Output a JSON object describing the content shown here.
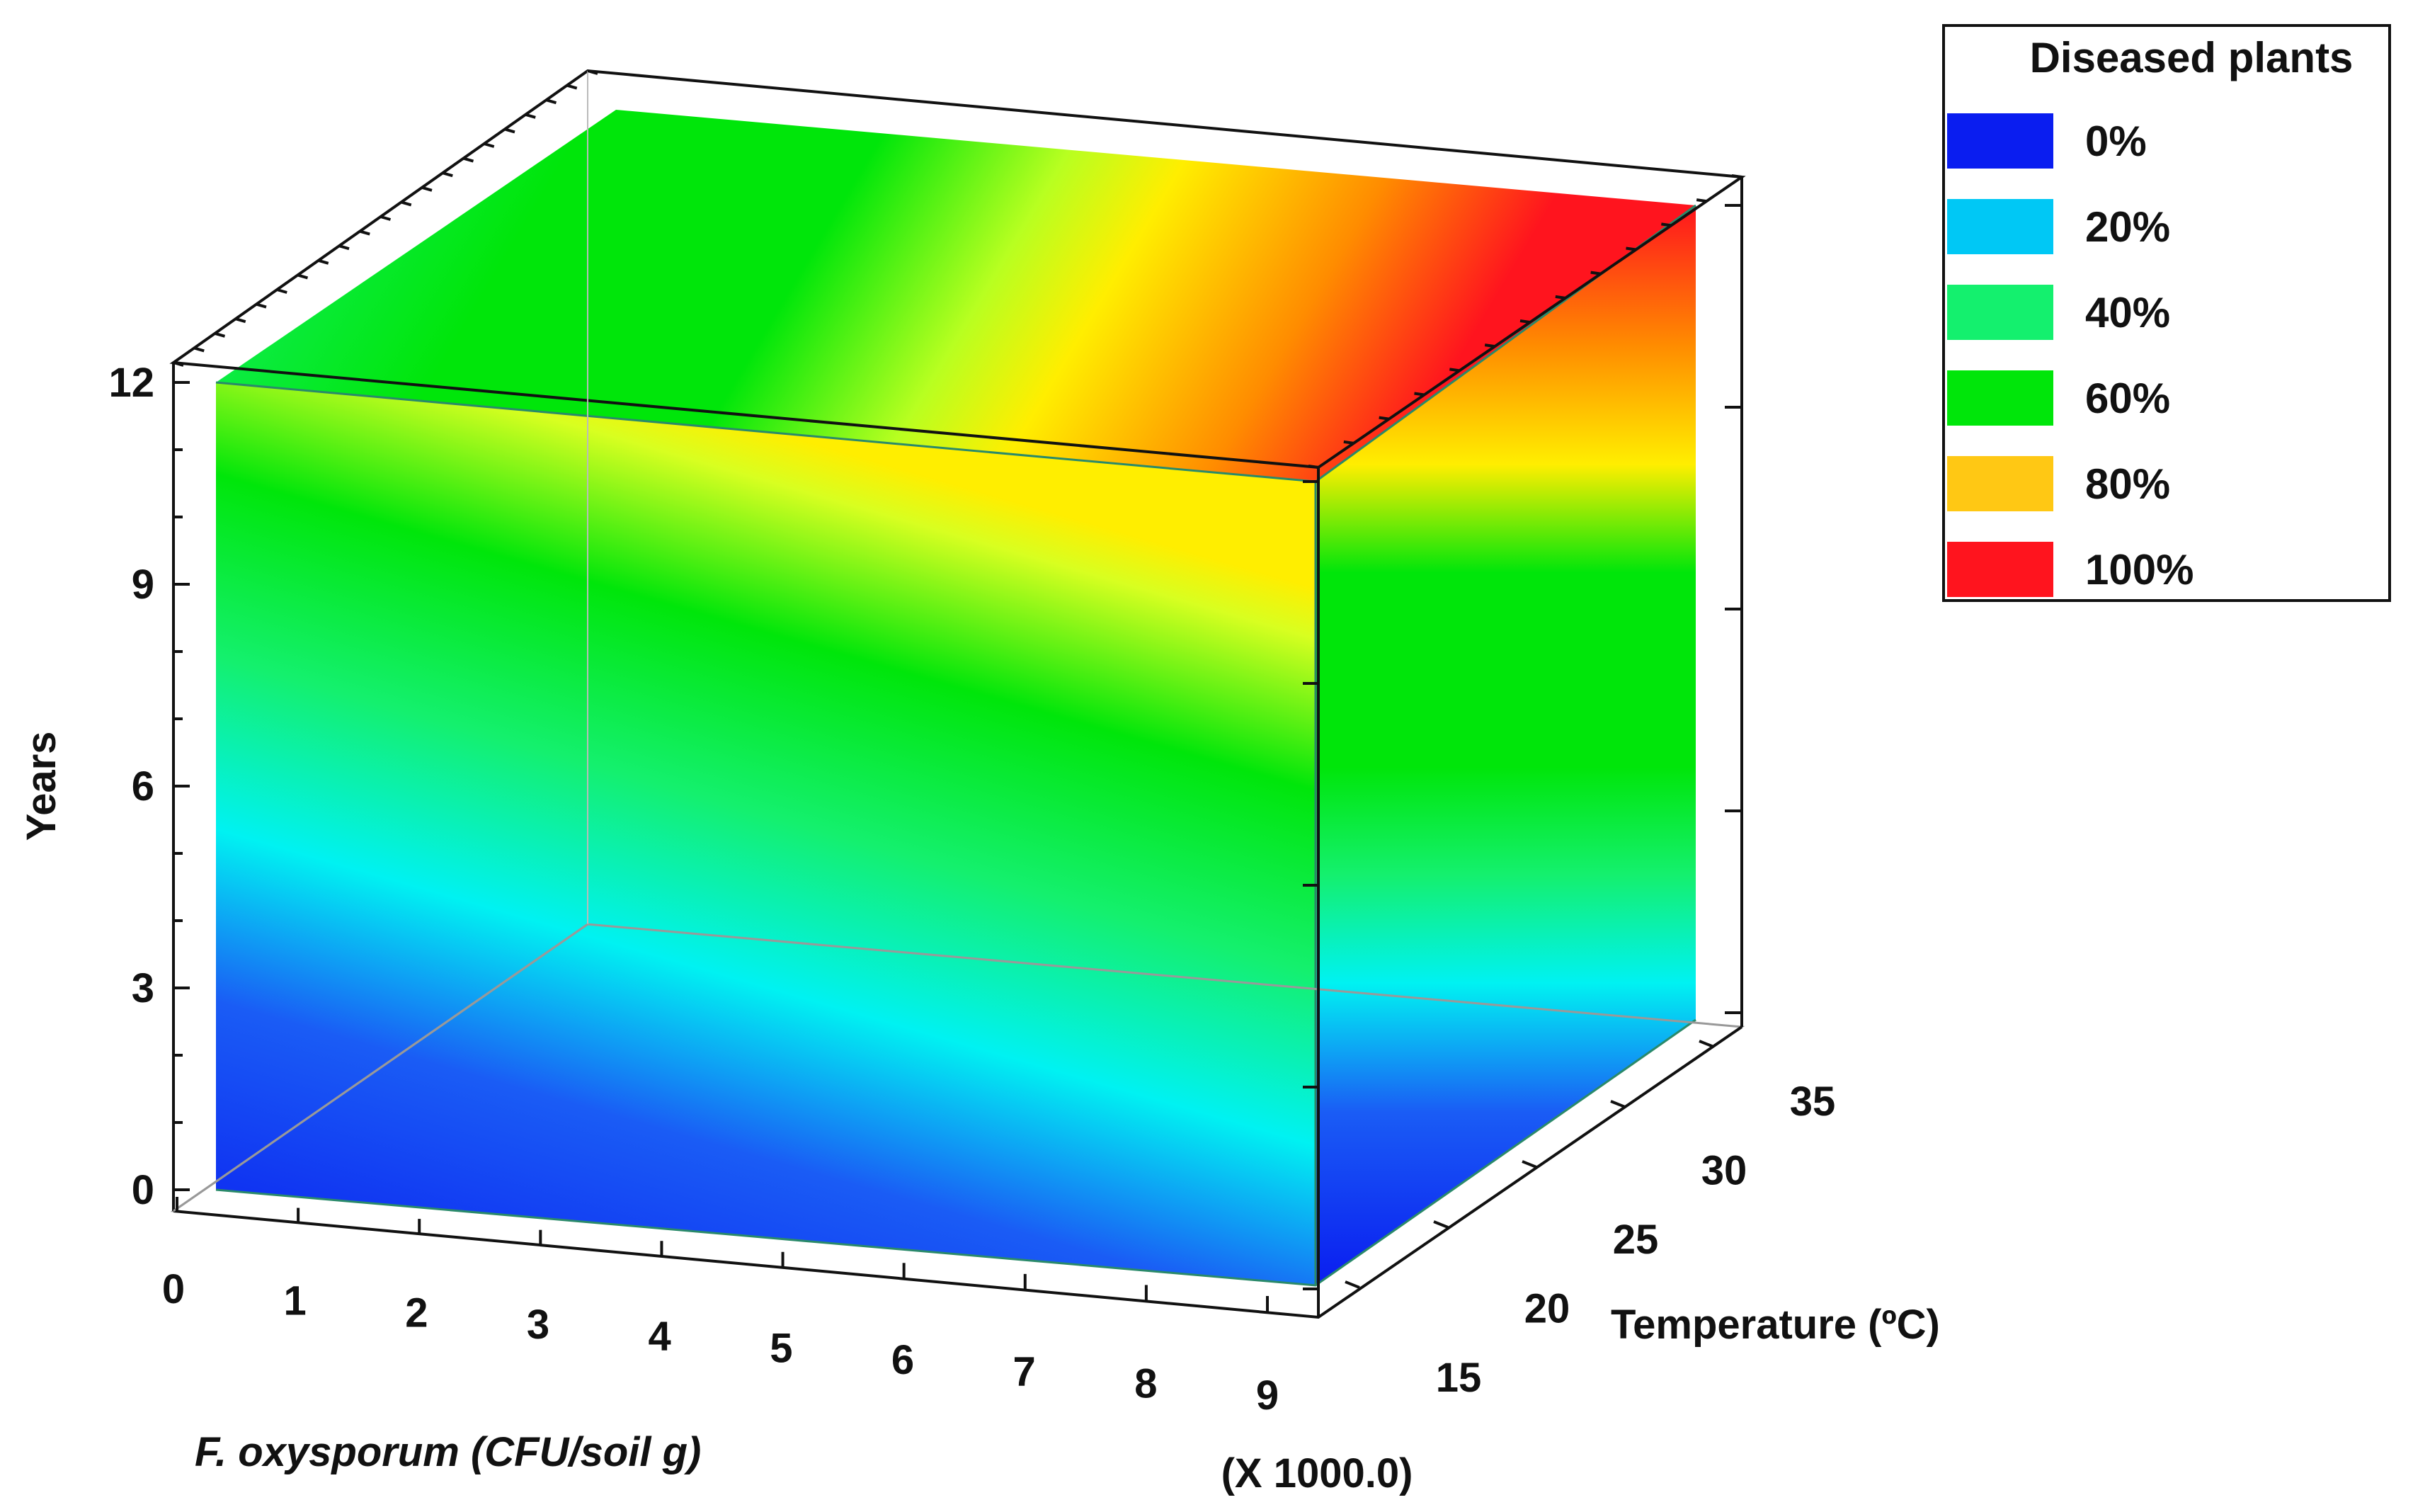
{
  "chart_data": {
    "type": "surface3d",
    "title": "",
    "x_axis": {
      "label": "F. oxysporum (CFU/soil g)",
      "multiplier": "(X 1000.0)",
      "ticks": [
        "0",
        "1",
        "2",
        "3",
        "4",
        "5",
        "6",
        "7",
        "8",
        "9"
      ],
      "range": [
        0,
        9
      ]
    },
    "y_axis": {
      "label": "Temperature (ºC)",
      "ticks": [
        "15",
        "20",
        "25",
        "30",
        "35"
      ],
      "range": [
        15,
        35
      ]
    },
    "z_axis": {
      "label": "Years",
      "ticks": [
        "0",
        "3",
        "6",
        "9",
        "12"
      ],
      "range": [
        0,
        12
      ]
    },
    "legend": {
      "title": "Diseased plants",
      "position": "top-right",
      "items": [
        {
          "label": "0%",
          "color": "#0a1df0"
        },
        {
          "label": "20%",
          "color": "#00c8f5"
        },
        {
          "label": "40%",
          "color": "#14f06e"
        },
        {
          "label": "60%",
          "color": "#00e60a"
        },
        {
          "label": "80%",
          "color": "#ffc814"
        },
        {
          "label": "100%",
          "color": "#ff141e"
        }
      ]
    }
  }
}
